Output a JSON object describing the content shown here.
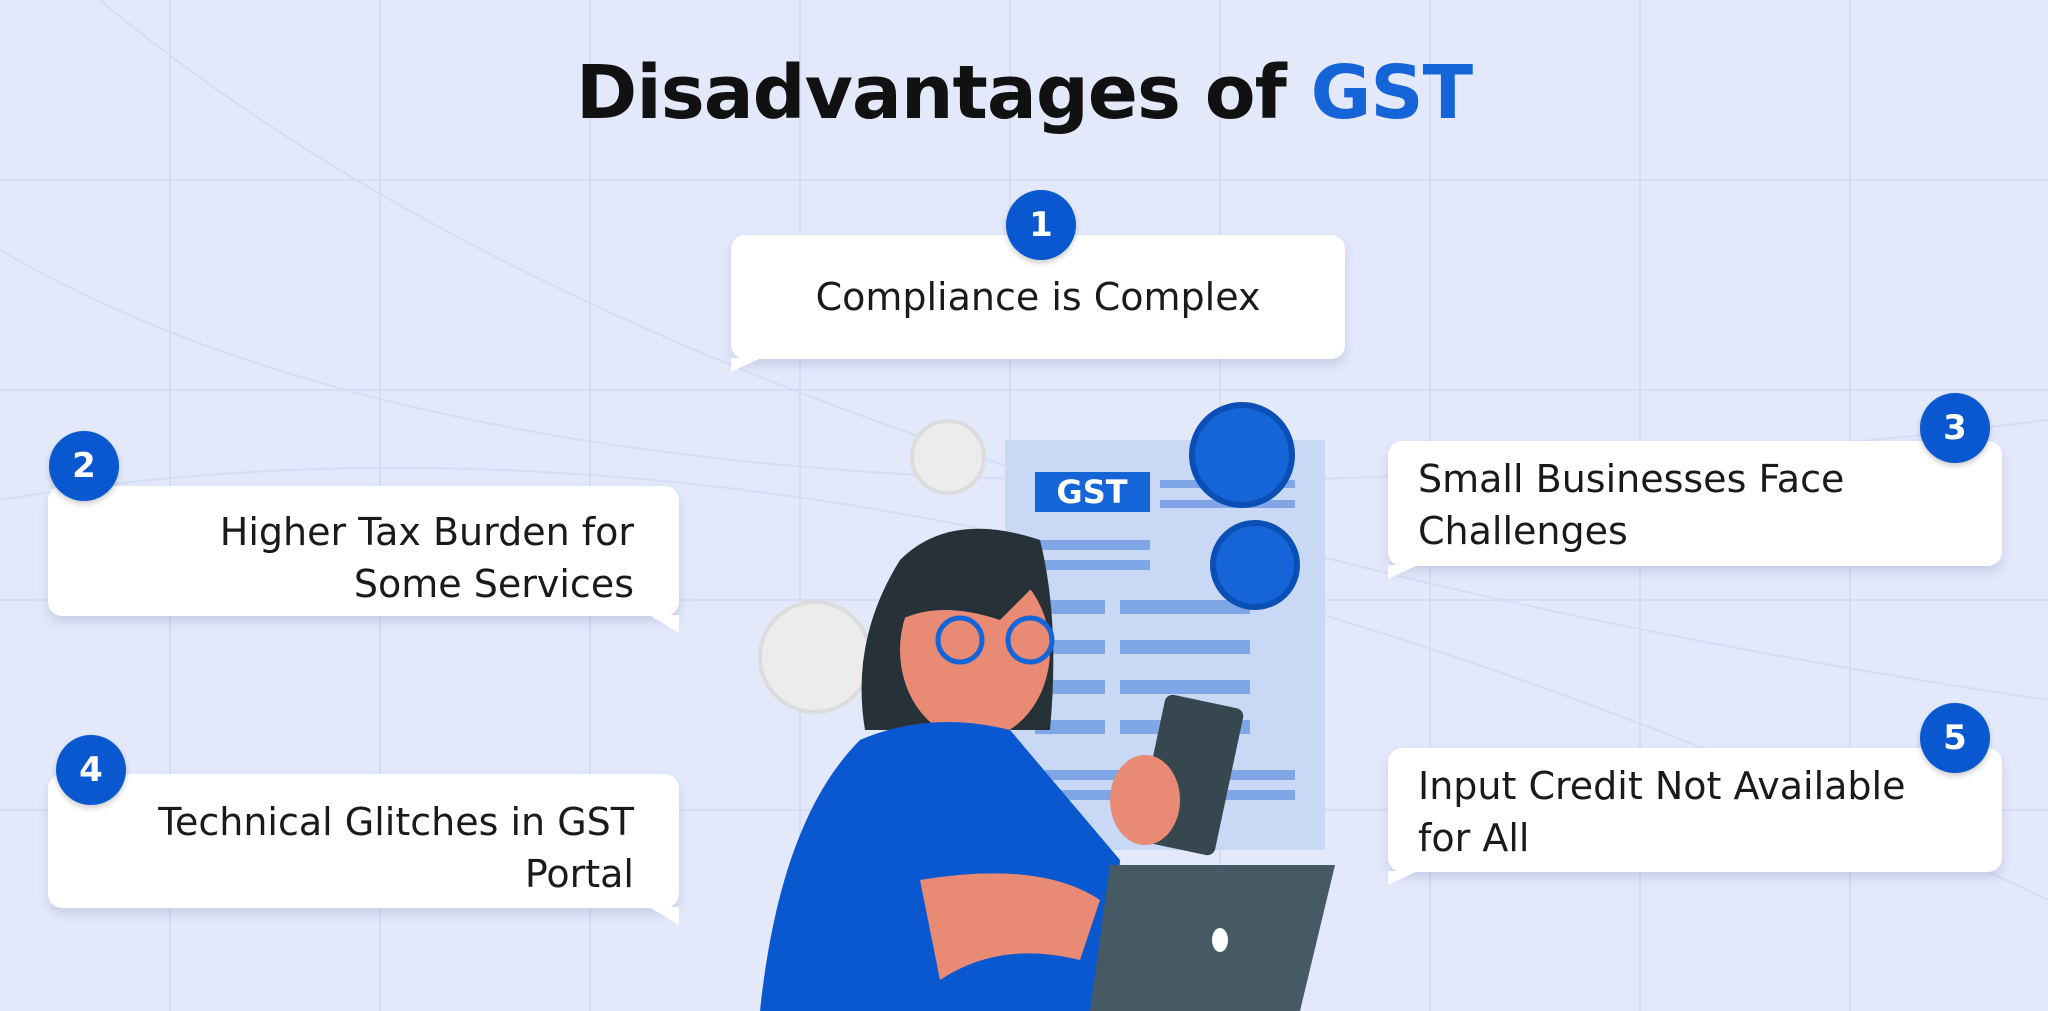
{
  "title": {
    "main": "Disadvantages of ",
    "accent": "GST"
  },
  "colors": {
    "background": "#e3e8fb",
    "accent": "#1565d8",
    "badge": "#0a58d0"
  },
  "items": [
    {
      "number": "1",
      "text": "Compliance is Complex"
    },
    {
      "number": "2",
      "text": "Higher Tax Burden for Some Services"
    },
    {
      "number": "3",
      "text": "Small Businesses Face Challenges"
    },
    {
      "number": "4",
      "text": "Technical Glitches in GST Portal"
    },
    {
      "number": "5",
      "text": "Input Credit Not Available for All"
    }
  ],
  "illustration": {
    "form_label": "GST"
  }
}
